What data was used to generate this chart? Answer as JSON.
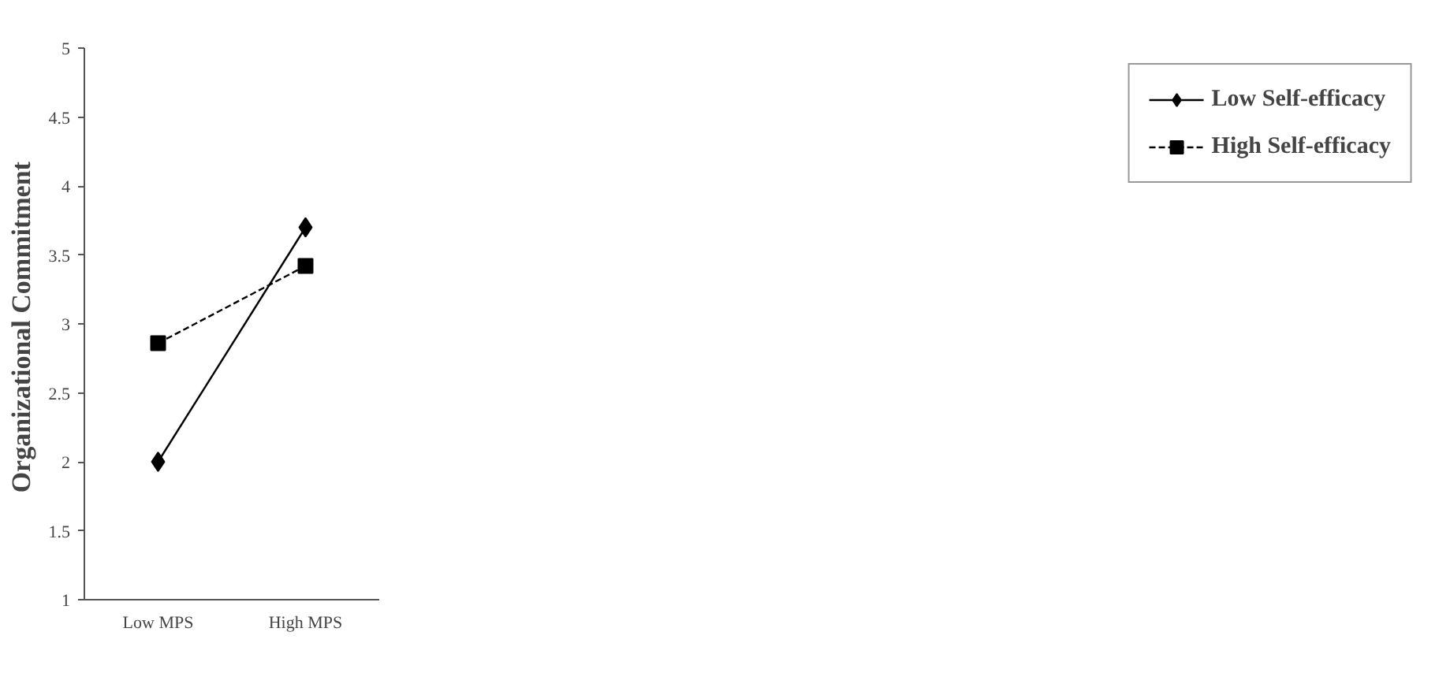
{
  "chart_data": {
    "type": "line",
    "ylabel": "Organizational  Commitment",
    "categories": [
      "Low MPS",
      "High MPS"
    ],
    "series": [
      {
        "name": "Low Self-efficacy",
        "color": "#000000",
        "values": [
          2.0,
          3.7
        ],
        "marker": "diamond",
        "line_style": "solid"
      },
      {
        "name": "High Self-efficacy",
        "color": "#000000",
        "values": [
          2.86,
          3.42
        ],
        "marker": "square",
        "line_style": "dashed"
      }
    ],
    "ylim": [
      1,
      5
    ],
    "yticks": [
      1,
      1.5,
      2,
      2.5,
      3,
      3.5,
      4,
      4.5,
      5
    ],
    "grid": false,
    "legend": "right"
  }
}
